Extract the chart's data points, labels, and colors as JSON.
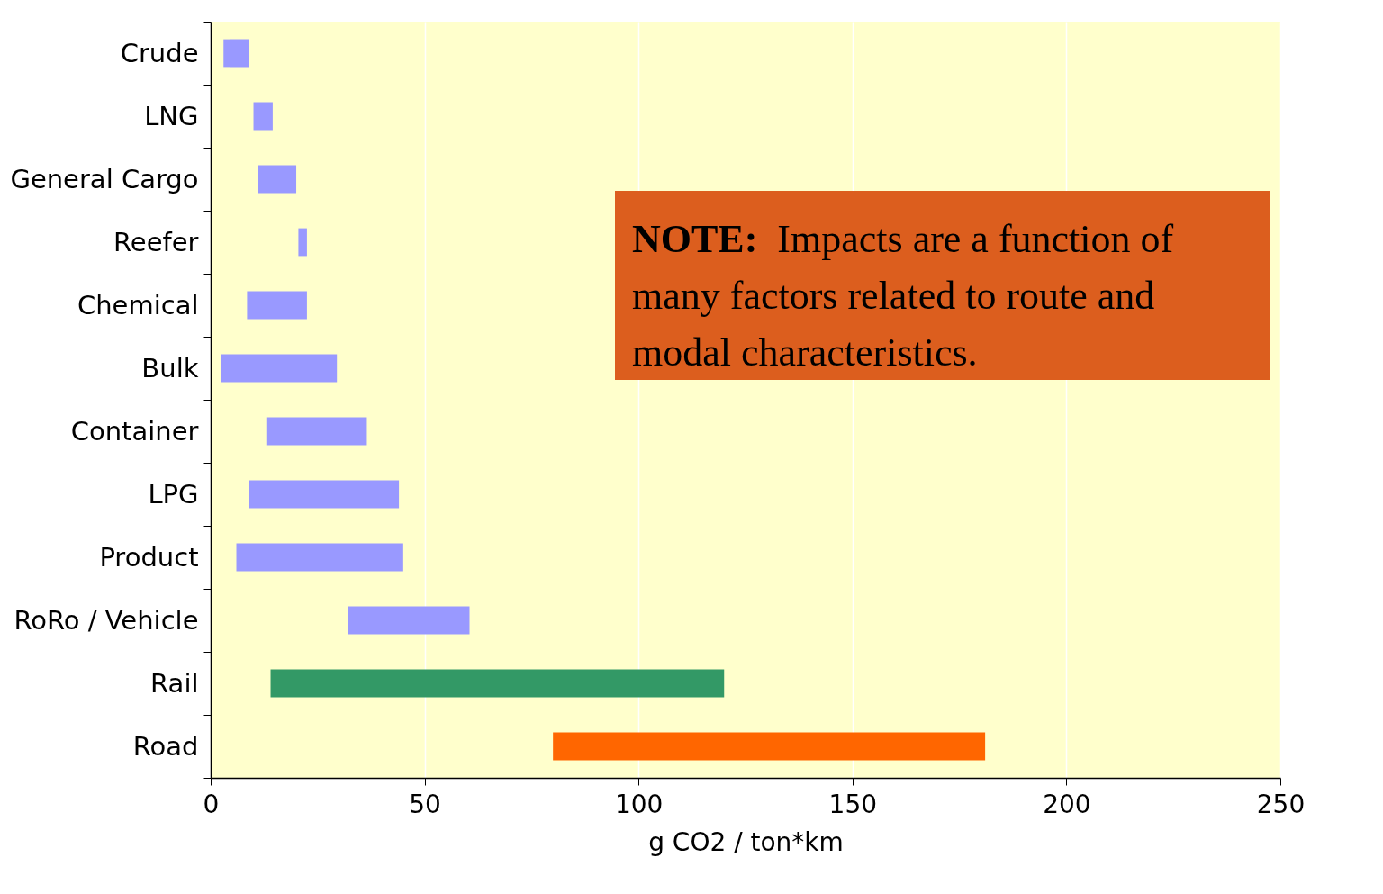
{
  "chart_data": {
    "type": "bar",
    "orientation": "horizontal",
    "categories": [
      "Crude",
      "LNG",
      "General Cargo",
      "Reefer",
      "Chemical",
      "Bulk",
      "Container",
      "LPG",
      "Product",
      "RoRo / Vehicle",
      "Rail",
      "Road"
    ],
    "base": [
      3,
      10,
      11,
      20.5,
      8.5,
      2.5,
      13,
      9,
      6,
      32,
      14,
      80
    ],
    "values": [
      6,
      4.5,
      9,
      2,
      14,
      27,
      23.5,
      35,
      39,
      28.5,
      106,
      101
    ],
    "colors": [
      "#9999ff",
      "#9999ff",
      "#9999ff",
      "#9999ff",
      "#9999ff",
      "#9999ff",
      "#9999ff",
      "#9999ff",
      "#9999ff",
      "#9999ff",
      "#339966",
      "#ff6600"
    ],
    "xlim": [
      0,
      250
    ],
    "xticks": [
      0,
      50,
      100,
      150,
      200,
      250
    ],
    "xlabel": "g CO2 / ton*km",
    "grid": "x",
    "legend": false,
    "annotations": [
      "NOTE:  Impacts are a function of many factors related to route and modal characteristics."
    ]
  }
}
